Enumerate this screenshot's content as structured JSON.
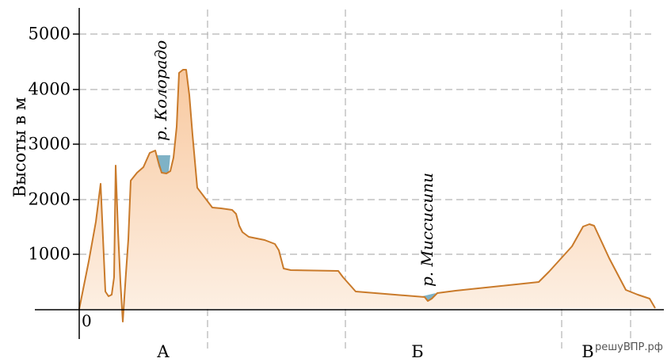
{
  "chart_data": {
    "type": "area",
    "ylabel": "Высоты в м",
    "ylim": [
      0,
      5000
    ],
    "yticks": [
      "1000",
      "2000",
      "3000",
      "4000",
      "5000"
    ],
    "origin_label": "0",
    "grid": true,
    "x_labels": [
      "А",
      "Б",
      "В"
    ],
    "annotations": [
      {
        "text": "р. Колорадо"
      },
      {
        "text": "р. Миссисипи"
      }
    ],
    "watermark": "решуВПР.рф",
    "colors": {
      "profile_line": "#c97a2a",
      "fill_top": "#f8c9a0",
      "fill_bottom": "#fdf1e6",
      "water": "#7fb2c6",
      "grid": "#b5b5b5"
    }
  }
}
